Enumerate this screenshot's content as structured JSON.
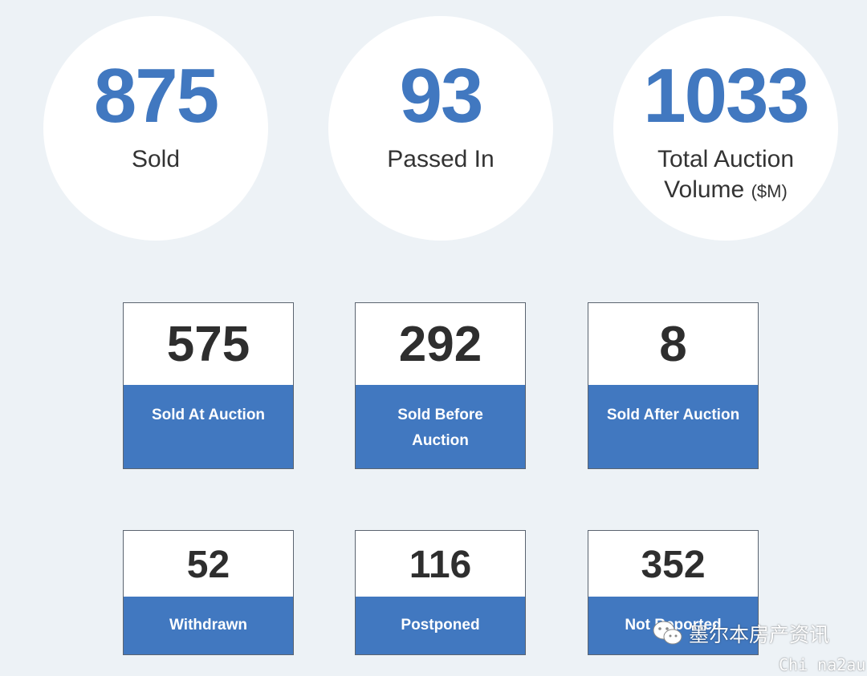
{
  "colors": {
    "accent_blue": "#4178c0",
    "background": "#edf2f6",
    "number_dark": "#2e2e2e"
  },
  "summary": [
    {
      "value": "875",
      "label": "Sold",
      "unit": ""
    },
    {
      "value": "93",
      "label": "Passed In",
      "unit": ""
    },
    {
      "value": "1033",
      "label": "Total Auction Volume",
      "unit": "($M)"
    }
  ],
  "sold_breakdown": [
    {
      "value": "575",
      "label": "Sold At Auction"
    },
    {
      "value": "292",
      "label": "Sold Before Auction"
    },
    {
      "value": "8",
      "label": "Sold After Auction"
    }
  ],
  "other_results": [
    {
      "value": "52",
      "label": "Withdrawn"
    },
    {
      "value": "116",
      "label": "Postponed"
    },
    {
      "value": "352",
      "label": "Not Reported"
    }
  ],
  "watermark": {
    "icon": "wechat-icon",
    "text": "墨尔本房产资讯",
    "sub": "Chi na2au"
  }
}
